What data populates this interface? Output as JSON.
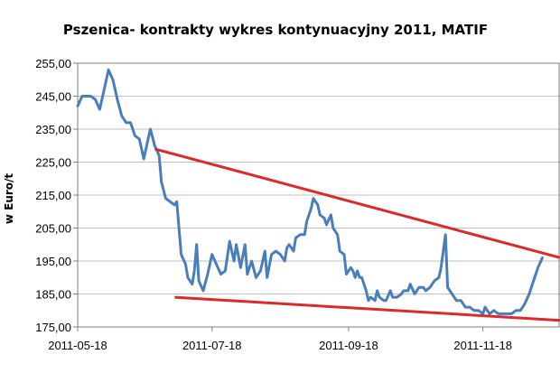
{
  "chart_data": {
    "type": "line",
    "title": "Pszenica- kontrakty wykres kontynuacyjny 2011, MATIF",
    "xlabel": "",
    "ylabel": "w Euro/t",
    "ylim": [
      175,
      255
    ],
    "y_ticks": [
      "255,00",
      "245,00",
      "235,00",
      "225,00",
      "215,00",
      "205,00",
      "195,00",
      "185,00",
      "175,00"
    ],
    "xlim": [
      "2011-05-18",
      "2011-12-23"
    ],
    "x_ticks": [
      "2011-05-18",
      "2011-07-18",
      "2011-09-18",
      "2011-11-18"
    ],
    "grid": true,
    "legend": "none",
    "colors": {
      "price": "#4a7ebb",
      "trendline": "#d92b2b",
      "grid": "#bfbfbf",
      "frame": "#808080"
    },
    "series": [
      {
        "values": [
          [
            "2011-05-18",
            242
          ],
          [
            "2011-05-20",
            245
          ],
          [
            "2011-05-24",
            245
          ],
          [
            "2011-05-26",
            244
          ],
          [
            "2011-05-28",
            241
          ],
          [
            "2011-05-30",
            247
          ],
          [
            "2011-06-01",
            253
          ],
          [
            "2011-06-03",
            250
          ],
          [
            "2011-06-05",
            244
          ],
          [
            "2011-06-07",
            239
          ],
          [
            "2011-06-09",
            237
          ],
          [
            "2011-06-11",
            237
          ],
          [
            "2011-06-13",
            233
          ],
          [
            "2011-06-15",
            232
          ],
          [
            "2011-06-17",
            226
          ],
          [
            "2011-06-19",
            232
          ],
          [
            "2011-06-20",
            235
          ],
          [
            "2011-06-22",
            230
          ],
          [
            "2011-06-24",
            227
          ],
          [
            "2011-06-25",
            219
          ],
          [
            "2011-06-27",
            214
          ],
          [
            "2011-06-29",
            213
          ],
          [
            "2011-07-01",
            212
          ],
          [
            "2011-07-02",
            213
          ],
          [
            "2011-07-04",
            197
          ],
          [
            "2011-07-06",
            194
          ],
          [
            "2011-07-07",
            190
          ],
          [
            "2011-07-09",
            188
          ],
          [
            "2011-07-10",
            192
          ],
          [
            "2011-07-11",
            200
          ],
          [
            "2011-07-12",
            189
          ],
          [
            "2011-07-14",
            186
          ],
          [
            "2011-07-16",
            191
          ],
          [
            "2011-07-18",
            197
          ],
          [
            "2011-07-20",
            194
          ],
          [
            "2011-07-22",
            191
          ],
          [
            "2011-07-24",
            192
          ],
          [
            "2011-07-26",
            201
          ],
          [
            "2011-07-28",
            195
          ],
          [
            "2011-07-29",
            200
          ],
          [
            "2011-07-31",
            193
          ],
          [
            "2011-08-02",
            200
          ],
          [
            "2011-08-03",
            191
          ],
          [
            "2011-08-05",
            195
          ],
          [
            "2011-08-07",
            190
          ],
          [
            "2011-08-09",
            192
          ],
          [
            "2011-08-11",
            198
          ],
          [
            "2011-08-12",
            190
          ],
          [
            "2011-08-14",
            197
          ],
          [
            "2011-08-16",
            198
          ],
          [
            "2011-08-18",
            197
          ],
          [
            "2011-08-20",
            195
          ],
          [
            "2011-08-21",
            199
          ],
          [
            "2011-08-22",
            200
          ],
          [
            "2011-08-24",
            198
          ],
          [
            "2011-08-25",
            202
          ],
          [
            "2011-08-27",
            203
          ],
          [
            "2011-08-29",
            203
          ],
          [
            "2011-08-30",
            207
          ],
          [
            "2011-09-01",
            211
          ],
          [
            "2011-09-02",
            214
          ],
          [
            "2011-09-04",
            212
          ],
          [
            "2011-09-05",
            209
          ],
          [
            "2011-09-07",
            208
          ],
          [
            "2011-09-08",
            206
          ],
          [
            "2011-09-10",
            209
          ],
          [
            "2011-09-11",
            205
          ],
          [
            "2011-09-13",
            203
          ],
          [
            "2011-09-14",
            198
          ],
          [
            "2011-09-16",
            197
          ],
          [
            "2011-09-17",
            191
          ],
          [
            "2011-09-19",
            193
          ],
          [
            "2011-09-20",
            192
          ],
          [
            "2011-09-21",
            190
          ],
          [
            "2011-09-22",
            192
          ],
          [
            "2011-09-23",
            190
          ],
          [
            "2011-09-24",
            190
          ],
          [
            "2011-09-26",
            186
          ],
          [
            "2011-09-27",
            183
          ],
          [
            "2011-09-28",
            184
          ],
          [
            "2011-09-30",
            183
          ],
          [
            "2011-10-01",
            186
          ],
          [
            "2011-10-02",
            184
          ],
          [
            "2011-10-04",
            183
          ],
          [
            "2011-10-05",
            183
          ],
          [
            "2011-10-07",
            186
          ],
          [
            "2011-10-08",
            184
          ],
          [
            "2011-10-10",
            184
          ],
          [
            "2011-10-12",
            185
          ],
          [
            "2011-10-13",
            186
          ],
          [
            "2011-10-15",
            186
          ],
          [
            "2011-10-16",
            188
          ],
          [
            "2011-10-18",
            185
          ],
          [
            "2011-10-20",
            187
          ],
          [
            "2011-10-22",
            187
          ],
          [
            "2011-10-23",
            186
          ],
          [
            "2011-10-25",
            187
          ],
          [
            "2011-10-27",
            189
          ],
          [
            "2011-10-29",
            190
          ],
          [
            "2011-10-30",
            193
          ],
          [
            "2011-11-01",
            203
          ],
          [
            "2011-11-02",
            187
          ],
          [
            "2011-11-04",
            185
          ],
          [
            "2011-11-06",
            183
          ],
          [
            "2011-11-08",
            183
          ],
          [
            "2011-11-10",
            181
          ],
          [
            "2011-11-12",
            181
          ],
          [
            "2011-11-14",
            180
          ],
          [
            "2011-11-16",
            180
          ],
          [
            "2011-11-18",
            179
          ],
          [
            "2011-11-19",
            181
          ],
          [
            "2011-11-21",
            179
          ],
          [
            "2011-11-23",
            180
          ],
          [
            "2011-11-25",
            179
          ],
          [
            "2011-11-27",
            179
          ],
          [
            "2011-11-29",
            179
          ],
          [
            "2011-12-01",
            179
          ],
          [
            "2011-12-03",
            180
          ],
          [
            "2011-12-05",
            180
          ],
          [
            "2011-12-07",
            182
          ],
          [
            "2011-12-09",
            185
          ],
          [
            "2011-12-11",
            189
          ],
          [
            "2011-12-13",
            193
          ],
          [
            "2011-12-15",
            196
          ]
        ]
      }
    ],
    "trendlines": [
      {
        "from": [
          "2011-06-22",
          229
        ],
        "to": [
          "2011-12-23",
          196
        ]
      },
      {
        "from": [
          "2011-07-01",
          184
        ],
        "to": [
          "2011-12-23",
          177
        ]
      }
    ]
  }
}
